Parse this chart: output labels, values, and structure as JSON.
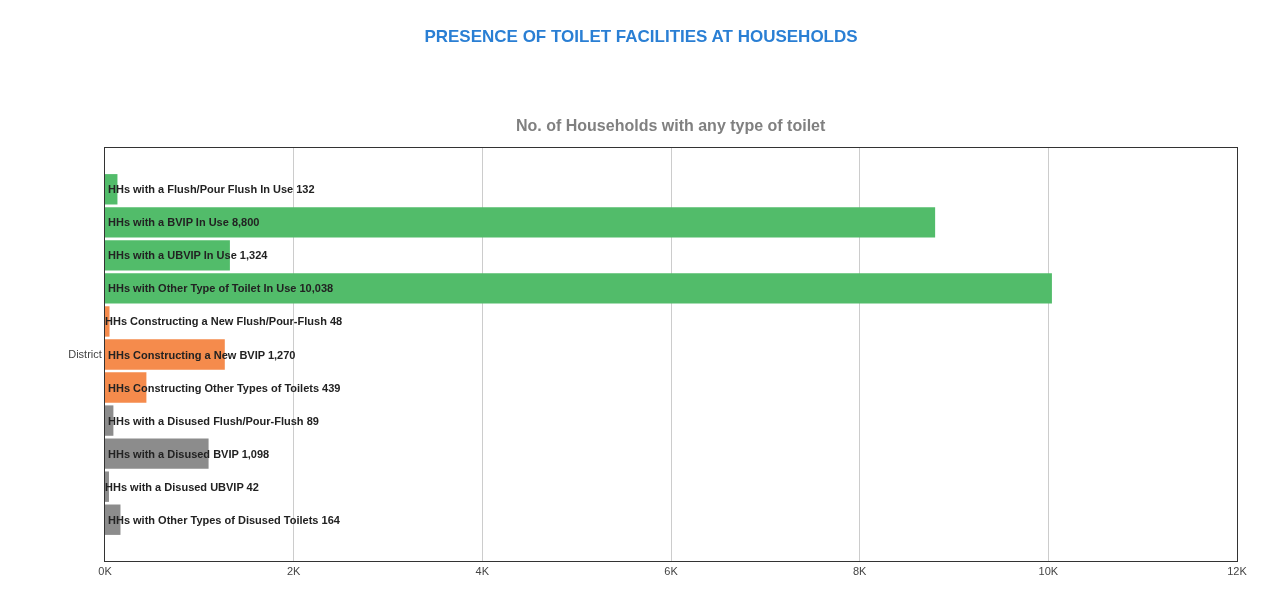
{
  "chart_data": {
    "type": "bar",
    "orientation": "horizontal",
    "title": "PRESENCE OF TOILET FACILITIES AT HOUSEHOLDS",
    "subtitle": "No. of Households with any type of toilet",
    "categories": [
      "District"
    ],
    "series": [
      {
        "name": "HHs with a Flush/Pour Flush In Use 132",
        "color": "#52bc6a",
        "values": [
          132
        ]
      },
      {
        "name": "HHs with a BVIP In Use 8,800",
        "color": "#52bc6a",
        "values": [
          8800
        ]
      },
      {
        "name": "HHs with a UBVIP In Use 1,324",
        "color": "#52bc6a",
        "values": [
          1324
        ]
      },
      {
        "name": "HHs with Other Type of Toilet In Use 10,038",
        "color": "#52bc6a",
        "values": [
          10038
        ]
      },
      {
        "name": "HHs Constructing a New Flush/Pour-Flush 48",
        "color": "#f58b4c",
        "values": [
          48
        ]
      },
      {
        "name": "HHs Constructing a New BVIP 1,270",
        "color": "#f58b4c",
        "values": [
          1270
        ]
      },
      {
        "name": "HHs Constructing Other Types of Toilets 439",
        "color": "#f58b4c",
        "values": [
          439
        ]
      },
      {
        "name": "HHs with a Disused Flush/Pour-Flush 89",
        "color": "#8c8c8c",
        "values": [
          89
        ]
      },
      {
        "name": "HHs with a Disused BVIP 1,098",
        "color": "#8c8c8c",
        "values": [
          1098
        ]
      },
      {
        "name": "HHs with a Disused UBVIP 42",
        "color": "#8c8c8c",
        "values": [
          42
        ]
      },
      {
        "name": "HHs with Other Types of Disused Toilets 164",
        "color": "#8c8c8c",
        "values": [
          164
        ]
      }
    ],
    "xlim": [
      0,
      12000
    ],
    "xticks": [
      {
        "value": 0,
        "label": "0K"
      },
      {
        "value": 2000,
        "label": "2K"
      },
      {
        "value": 4000,
        "label": "4K"
      },
      {
        "value": 6000,
        "label": "6K"
      },
      {
        "value": 8000,
        "label": "8K"
      },
      {
        "value": 10000,
        "label": "10K"
      },
      {
        "value": 12000,
        "label": "12K"
      }
    ],
    "grid": "x",
    "legend": false
  }
}
